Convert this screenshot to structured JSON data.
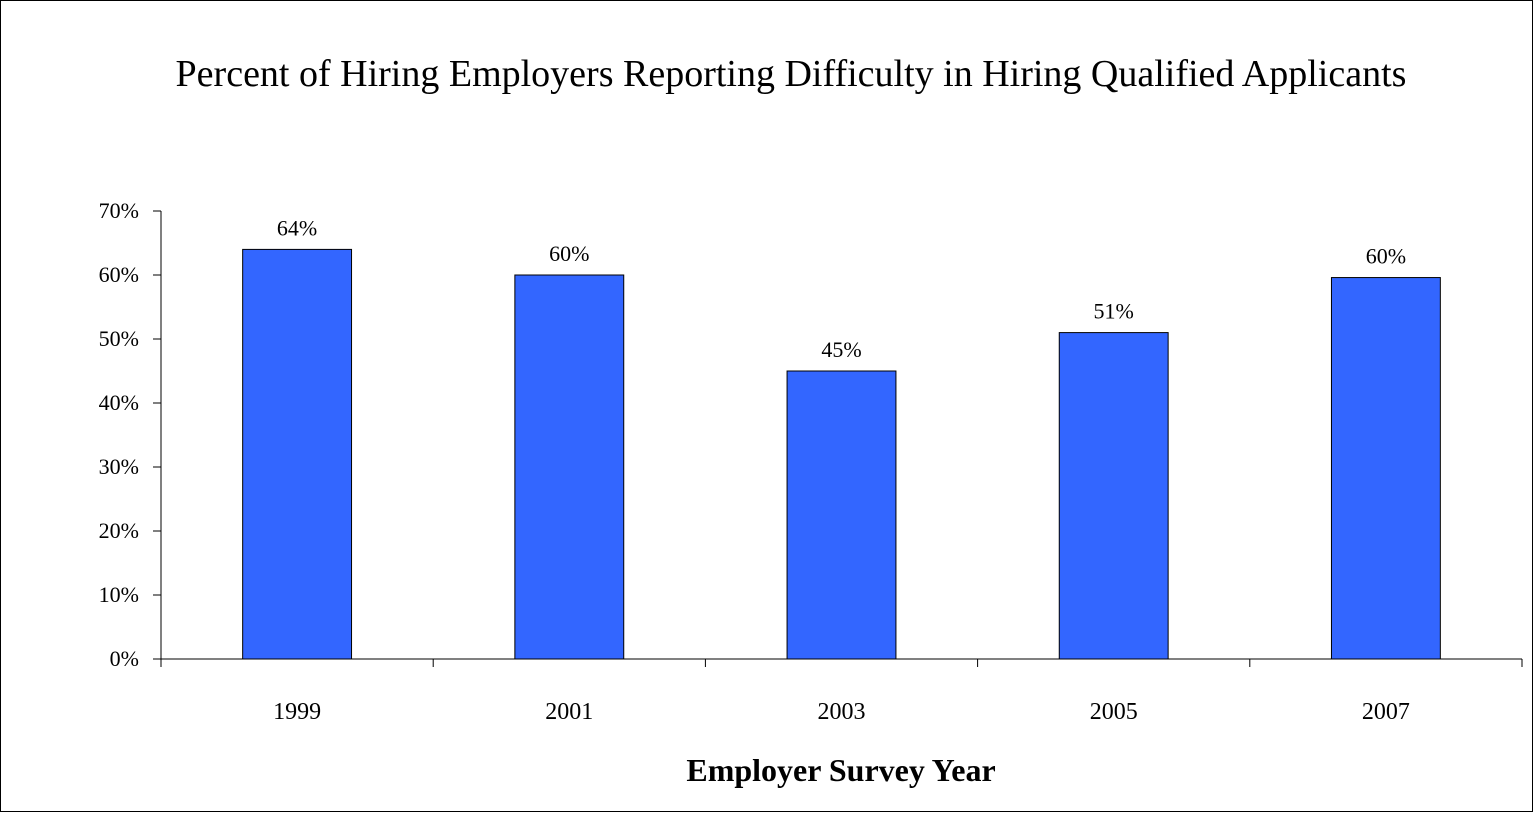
{
  "chart_data": {
    "type": "bar",
    "title": "Percent of Hiring Employers Reporting Difficulty in Hiring Qualified Applicants",
    "xlabel": "Employer Survey Year",
    "ylabel": "",
    "categories": [
      "1999",
      "2001",
      "2003",
      "2005",
      "2007"
    ],
    "values": [
      64,
      60,
      45,
      51,
      59.6
    ],
    "data_labels": [
      "64%",
      "60%",
      "45%",
      "51%",
      "60%"
    ],
    "ylim": [
      0,
      70
    ],
    "yticks": [
      0,
      10,
      20,
      30,
      40,
      50,
      60,
      70
    ],
    "ytick_labels": [
      "0%",
      "10%",
      "20%",
      "30%",
      "40%",
      "50%",
      "60%",
      "70%"
    ],
    "grid": false,
    "legend": "none",
    "bar_color": "#3366FF",
    "bar_edge_color": "#000000"
  }
}
